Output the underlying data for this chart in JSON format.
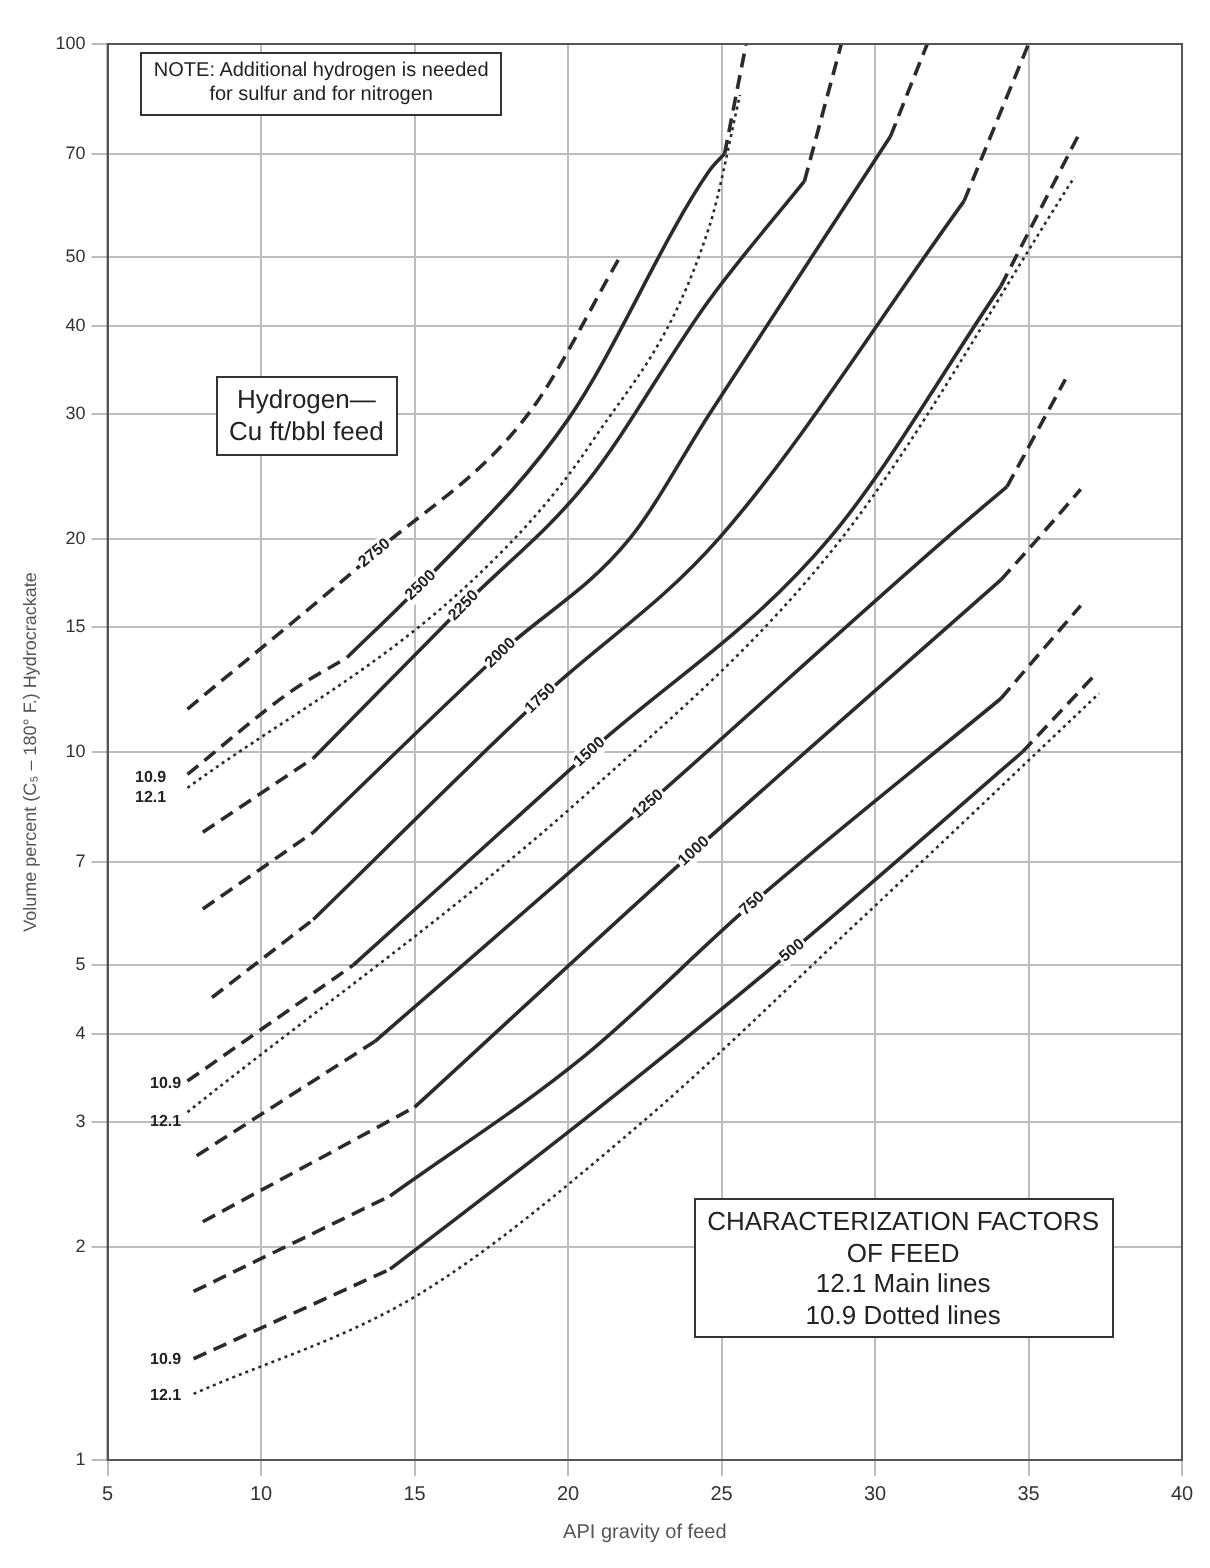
{
  "chart_data": {
    "type": "line",
    "xlabel": "API gravity of feed",
    "ylabel": "Volume percent (C₅ – 180° F.) Hydrocrackate",
    "xlim": [
      5,
      40
    ],
    "xticks": [
      5,
      10,
      15,
      20,
      25,
      30,
      35,
      40
    ],
    "ylim": [
      1,
      100
    ],
    "yticks": [
      1,
      2,
      3,
      4,
      5,
      7,
      10,
      15,
      20,
      30,
      40,
      50,
      70,
      100
    ],
    "log": "y",
    "grid": true,
    "series": [
      {
        "color": "#2b2b2b",
        "line_style": "dashed",
        "x": [
          7.6,
          13.7,
          18.7,
          21.7
        ],
        "values": [
          11.5,
          19.1,
          30,
          50.1
        ]
      },
      {
        "color": "#2b2b2b",
        "line_style": "solid",
        "x": [
          12.8,
          15.2,
          20,
          24.6,
          25.1
        ],
        "values": [
          13.6,
          17.2,
          29.5,
          66.2,
          70
        ]
      },
      {
        "color": "#2b2b2b",
        "line_style": "dashed",
        "x": [
          7.6,
          11,
          12.8,
          20,
          25.1,
          25.8
        ],
        "values": [
          9.3,
          12.2,
          13.6,
          null,
          70,
          100
        ]
      },
      {
        "color": "#2b2b2b",
        "line_style": "dotted",
        "x": [
          7.6,
          16.9,
          20.8,
          24.6,
          25.6
        ],
        "values": [
          8.9,
          17.5,
          27.5,
          55.2,
          84.7
        ]
      },
      {
        "color": "#2b2b2b",
        "line_style": "solid",
        "x": [
          11.7,
          16.6,
          20.6,
          24.6,
          27.7
        ],
        "values": [
          9.8,
          16.1,
          24,
          43.5,
          64
        ]
      },
      {
        "color": "#2b2b2b",
        "line_style": "dashed",
        "x": [
          8.1,
          11.7,
          20,
          27.7,
          28.9
        ],
        "values": [
          7.7,
          9.8,
          null,
          64,
          100
        ]
      },
      {
        "color": "#2b2b2b",
        "line_style": "solid",
        "x": [
          11.7,
          17.8,
          22,
          24.6,
          30.5
        ],
        "values": [
          7.7,
          13.8,
          20,
          30,
          74
        ]
      },
      {
        "color": "#2b2b2b",
        "line_style": "dashed",
        "x": [
          8.1,
          11.7,
          24,
          30.5,
          31.7
        ],
        "values": [
          6.0,
          7.7,
          null,
          74,
          100
        ]
      },
      {
        "color": "#2b2b2b",
        "line_style": "solid",
        "x": [
          11.7,
          19.1,
          24.9,
          32.9
        ],
        "values": [
          5.8,
          11.9,
          20,
          60
        ]
      },
      {
        "color": "#2b2b2b",
        "line_style": "dashed",
        "x": [
          8.4,
          11.7,
          24,
          32.9,
          35
        ],
        "values": [
          4.5,
          5.8,
          null,
          60,
          100
        ]
      },
      {
        "color": "#2b2b2b",
        "line_style": "solid",
        "x": [
          13,
          20.7,
          28.5,
          34.1
        ],
        "values": [
          5.0,
          10,
          20,
          45.5
        ]
      },
      {
        "color": "#2b2b2b",
        "line_style": "dashed",
        "x": [
          7.6,
          13,
          24,
          34.1,
          36.7
        ],
        "values": [
          3.43,
          5.0,
          null,
          45.5,
          75.4
        ]
      },
      {
        "color": "#2b2b2b",
        "line_style": "dotted",
        "x": [
          7.6,
          20.7,
          28.9,
          36.5
        ],
        "values": [
          3.1,
          8.8,
          20,
          64.9
        ]
      },
      {
        "color": "#2b2b2b",
        "line_style": "solid",
        "x": [
          13.7,
          22.6,
          32.3,
          34.3
        ],
        "values": [
          3.9,
          8.44,
          20,
          23.7
        ]
      },
      {
        "color": "#2b2b2b",
        "line_style": "dashed",
        "x": [
          7.9,
          13.7,
          24,
          34.3,
          36.2
        ],
        "values": [
          2.69,
          3.9,
          null,
          23.7,
          33.6
        ]
      },
      {
        "color": "#2b2b2b",
        "line_style": "solid",
        "x": [
          15,
          24.1,
          34.1
        ],
        "values": [
          3.15,
          7.24,
          17.5
        ]
      },
      {
        "color": "#2b2b2b",
        "line_style": "dashed",
        "x": [
          8.1,
          15,
          24,
          34.1,
          35.3,
          36.7
        ],
        "values": [
          2.17,
          3.15,
          null,
          17.5,
          20,
          23.5
        ]
      },
      {
        "color": "#2b2b2b",
        "line_style": "solid",
        "x": [
          14.2,
          20.5,
          26,
          34.1
        ],
        "values": [
          2.36,
          3.71,
          6.11,
          11.9
        ]
      },
      {
        "color": "#2b2b2b",
        "line_style": "dashed",
        "x": [
          7.8,
          14.2,
          24,
          34.1,
          36.7
        ],
        "values": [
          1.73,
          2.36,
          null,
          11.9,
          16.1
        ]
      },
      {
        "color": "#2b2b2b",
        "line_style": "solid",
        "x": [
          14.2,
          20.5,
          27.3,
          34.8
        ],
        "values": [
          1.86,
          3.02,
          5.24,
          10
        ]
      },
      {
        "color": "#2b2b2b",
        "line_style": "dashed",
        "x": [
          7.8,
          14.2,
          24,
          34.8,
          37.2
        ],
        "values": [
          1.39,
          1.86,
          null,
          10,
          12.9
        ]
      },
      {
        "color": "#2b2b2b",
        "line_style": "dotted",
        "x": [
          7.8,
          15.1,
          22.1,
          29.6,
          37.3
        ],
        "values": [
          1.24,
          1.71,
          2.92,
          5.84,
          12.1
        ]
      }
    ],
    "annotations": [
      "NOTE: Additional hydrogen is needed\nfor sulfur and for nitrogen",
      "Hydrogen—\nCu ft/bbl feed",
      "CHARACTERIZATION FACTORS\nOF FEED\n12.1 Main lines\n10.9 Dotted lines",
      {
        "text": "2750",
        "x": 13.7,
        "y": 19.1
      },
      {
        "text": "2500",
        "x": 15.2,
        "y": 17.2
      },
      {
        "text": "2250",
        "x": 16.6,
        "y": 16.1
      },
      {
        "text": "2000",
        "x": 17.8,
        "y": 13.8
      },
      {
        "text": "1750",
        "x": 19.1,
        "y": 11.9
      },
      {
        "text": "1500",
        "x": 20.7,
        "y": 10
      },
      {
        "text": "1250",
        "x": 22.6,
        "y": 8.44
      },
      {
        "text": "1000",
        "x": 24.1,
        "y": 7.24
      },
      {
        "text": "750",
        "x": 26,
        "y": 6.11
      },
      {
        "text": "500",
        "x": 27.3,
        "y": 5.24
      },
      "10.9",
      "12.1",
      "10.9",
      "12.1",
      "10.9",
      "12.1"
    ]
  }
}
